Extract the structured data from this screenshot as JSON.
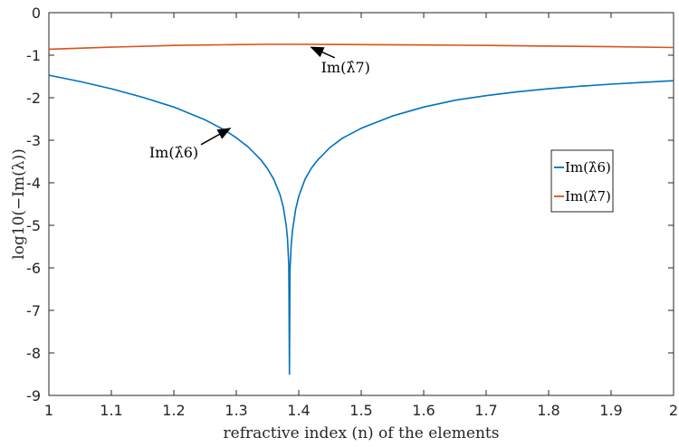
{
  "chart_data": {
    "type": "line",
    "title": "",
    "xlabel": "refractive index (n) of the elements",
    "ylabel": "log10(−Im(λ))",
    "xlim": [
      1,
      2
    ],
    "ylim": [
      -9,
      0
    ],
    "x_ticks": [
      1,
      1.1,
      1.2,
      1.3,
      1.4,
      1.5,
      1.6,
      1.7,
      1.8,
      1.9,
      2
    ],
    "x_tick_labels": [
      "1",
      "1.1",
      "1.2",
      "1.3",
      "1.4",
      "1.5",
      "1.6",
      "1.7",
      "1.8",
      "1.9",
      "2"
    ],
    "y_ticks": [
      0,
      -1,
      -2,
      -3,
      -4,
      -5,
      -6,
      -7,
      -8,
      -9
    ],
    "y_tick_labels": [
      "0",
      "-1",
      "-2",
      "-3",
      "-4",
      "-5",
      "-6",
      "-7",
      "-8",
      "-9"
    ],
    "grid": false,
    "legend_position": "right",
    "series": [
      {
        "name": "Im(λ̂6)",
        "color": "#0072BD",
        "x": [
          1.0,
          1.05,
          1.1,
          1.15,
          1.2,
          1.25,
          1.28,
          1.3,
          1.32,
          1.34,
          1.35,
          1.36,
          1.37,
          1.375,
          1.38,
          1.382,
          1.384,
          1.385,
          1.386,
          1.388,
          1.39,
          1.395,
          1.4,
          1.41,
          1.42,
          1.43,
          1.45,
          1.47,
          1.5,
          1.55,
          1.6,
          1.65,
          1.7,
          1.75,
          1.8,
          1.85,
          1.9,
          1.95,
          2.0
        ],
        "values": [
          -1.47,
          -1.62,
          -1.79,
          -1.99,
          -2.22,
          -2.52,
          -2.75,
          -2.94,
          -3.17,
          -3.47,
          -3.67,
          -3.92,
          -4.28,
          -4.56,
          -5.01,
          -5.32,
          -5.95,
          -8.5,
          -6.05,
          -5.45,
          -5.12,
          -4.62,
          -4.32,
          -3.92,
          -3.66,
          -3.47,
          -3.17,
          -2.95,
          -2.72,
          -2.43,
          -2.22,
          -2.06,
          -1.95,
          -1.86,
          -1.79,
          -1.73,
          -1.68,
          -1.64,
          -1.6
        ]
      },
      {
        "name": "Im(λ̂7)",
        "color": "#D95319",
        "x": [
          1.0,
          1.1,
          1.2,
          1.3,
          1.35,
          1.4,
          1.5,
          1.6,
          1.7,
          1.8,
          1.9,
          2.0
        ],
        "values": [
          -0.86,
          -0.81,
          -0.77,
          -0.75,
          -0.745,
          -0.745,
          -0.75,
          -0.76,
          -0.77,
          -0.785,
          -0.8,
          -0.82
        ]
      }
    ],
    "annotations": [
      {
        "text": "Im(λ̂7)",
        "x": 1.475,
        "y": -1.4,
        "arrow_to": [
          1.42,
          -0.75
        ]
      },
      {
        "text": "Im(λ̂6)",
        "x": 1.2,
        "y": -3.4,
        "arrow_to": [
          1.29,
          -2.7
        ]
      }
    ]
  }
}
